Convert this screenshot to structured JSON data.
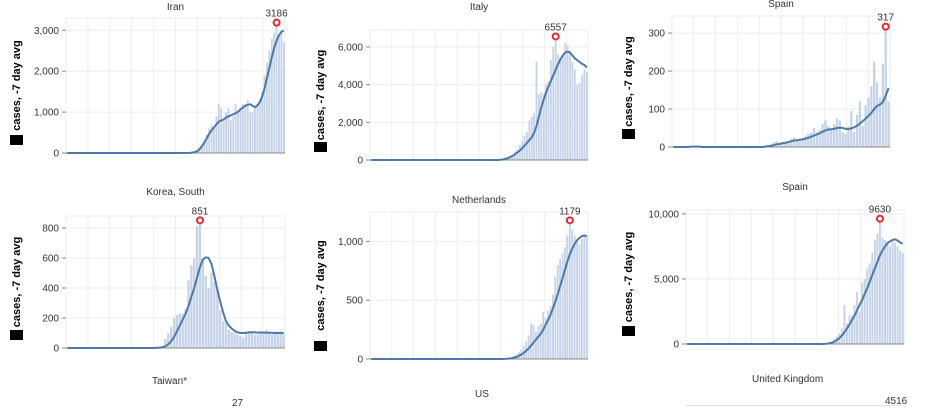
{
  "ylabel": "cases, -7 day avg",
  "colors": {
    "bar": "#c4d3e8",
    "line": "#4e79a7",
    "peak": "#e8262b",
    "grid": "#eeeeee",
    "axis": "#888888"
  },
  "titles_row": {
    "row1": [
      "Iran",
      "Italy",
      "Spain"
    ],
    "row2": [
      "Korea, South",
      "Netherlands",
      "Spain"
    ],
    "row3": [
      "Taiwan*",
      "US",
      "United Kingdom"
    ]
  },
  "bottom_values": {
    "taiwan_peak": "27",
    "uk_peak": "4516"
  },
  "chart_data": [
    {
      "type": "bar",
      "name": "Iran",
      "title": "Iran",
      "ylim": [
        0,
        3300
      ],
      "yticks": [
        0,
        1000,
        2000,
        3000
      ],
      "ytick_labels": [
        "0",
        "1,000",
        "2,000",
        "3,000"
      ],
      "peak": 3186,
      "peak_label": "3186",
      "values": [
        0,
        0,
        0,
        0,
        0,
        0,
        0,
        0,
        0,
        0,
        0,
        0,
        0,
        0,
        0,
        0,
        0,
        0,
        0,
        0,
        0,
        0,
        0,
        0,
        0,
        0,
        0,
        0,
        0,
        0,
        0,
        0,
        0,
        0,
        0,
        0,
        0,
        0,
        0,
        0,
        0,
        0,
        0,
        0,
        0,
        0,
        0,
        0,
        0,
        0,
        0,
        5,
        10,
        25,
        50,
        100,
        200,
        300,
        450,
        600,
        700,
        600,
        900,
        1200,
        1100,
        800,
        1000,
        1100,
        800,
        900,
        1200,
        1050,
        1100,
        1200,
        1150,
        1300,
        1000,
        1000,
        1100,
        1200,
        1300,
        1500,
        1900,
        2200,
        2500,
        2800,
        2950,
        3186,
        2900,
        3000,
        2700
      ],
      "avg": [
        0,
        0,
        0,
        0,
        0,
        0,
        0,
        0,
        0,
        0,
        0,
        0,
        0,
        0,
        0,
        0,
        0,
        0,
        0,
        0,
        0,
        0,
        0,
        0,
        0,
        0,
        0,
        0,
        0,
        0,
        0,
        0,
        0,
        0,
        0,
        0,
        0,
        0,
        0,
        0,
        0,
        0,
        0,
        0,
        0,
        0,
        0,
        0,
        0,
        0,
        0,
        3,
        8,
        15,
        30,
        60,
        120,
        200,
        300,
        400,
        500,
        580,
        650,
        720,
        780,
        800,
        830,
        880,
        900,
        930,
        950,
        980,
        1020,
        1080,
        1120,
        1160,
        1180,
        1190,
        1150,
        1120,
        1170,
        1250,
        1400,
        1600,
        1850,
        2100,
        2350,
        2580,
        2750,
        2880,
        2960,
        3000
      ]
    },
    {
      "type": "bar",
      "name": "Italy",
      "title": "Italy",
      "ylim": [
        0,
        6900
      ],
      "yticks": [
        0,
        2000,
        4000,
        6000
      ],
      "ytick_labels": [
        "0",
        "2,000",
        "4,000",
        "6,000"
      ],
      "peak": 6557,
      "peak_label": "6557",
      "values": [
        0,
        0,
        0,
        0,
        0,
        0,
        0,
        0,
        0,
        0,
        0,
        0,
        0,
        0,
        0,
        0,
        0,
        0,
        0,
        0,
        0,
        0,
        0,
        0,
        0,
        0,
        0,
        0,
        0,
        0,
        0,
        0,
        0,
        0,
        0,
        0,
        0,
        0,
        0,
        0,
        0,
        0,
        0,
        0,
        0,
        0,
        0,
        0,
        0,
        0,
        0,
        0,
        0,
        0,
        20,
        60,
        80,
        150,
        250,
        300,
        450,
        550,
        800,
        1000,
        1300,
        1500,
        2100,
        2300,
        2500,
        5200,
        3500,
        3600,
        3500,
        4000,
        4200,
        5300,
        6000,
        6557,
        5600,
        5400,
        5600,
        6200,
        6100,
        5800,
        5200,
        4800,
        4000,
        4100,
        4500,
        4800,
        4700
      ],
      "avg": [
        0,
        0,
        0,
        0,
        0,
        0,
        0,
        0,
        0,
        0,
        0,
        0,
        0,
        0,
        0,
        0,
        0,
        0,
        0,
        0,
        0,
        0,
        0,
        0,
        0,
        0,
        0,
        0,
        0,
        0,
        0,
        0,
        0,
        0,
        0,
        0,
        0,
        0,
        0,
        0,
        0,
        0,
        0,
        0,
        0,
        0,
        0,
        0,
        0,
        0,
        0,
        0,
        0,
        0,
        10,
        30,
        60,
        100,
        150,
        220,
        300,
        400,
        500,
        620,
        760,
        900,
        1050,
        1200,
        1450,
        1800,
        2300,
        2800,
        3200,
        3600,
        3900,
        4200,
        4500,
        4800,
        5100,
        5350,
        5550,
        5700,
        5750,
        5700,
        5550,
        5400,
        5300,
        5200,
        5100,
        5050,
        4900
      ]
    },
    {
      "type": "bar",
      "name": "Spain",
      "title": "Spain",
      "ylim": [
        0,
        345
      ],
      "yticks": [
        0,
        100,
        200,
        300
      ],
      "ytick_labels": [
        "0",
        "100",
        "200",
        "300"
      ],
      "peak": 317,
      "peak_label": "317",
      "values": [
        0,
        0,
        0,
        0,
        0,
        0,
        2,
        0,
        0,
        0,
        0,
        0,
        0,
        0,
        0,
        0,
        0,
        0,
        0,
        0,
        0,
        0,
        0,
        0,
        0,
        0,
        0,
        0,
        0,
        0,
        0,
        0,
        2,
        5,
        8,
        12,
        15,
        6,
        10,
        12,
        15,
        20,
        25,
        20,
        18,
        22,
        30,
        35,
        38,
        50,
        40,
        45,
        60,
        70,
        55,
        45,
        60,
        75,
        70,
        40,
        35,
        55,
        95,
        40,
        85,
        120,
        55,
        110,
        130,
        160,
        225,
        170,
        130,
        220,
        317,
        120
      ],
      "avg": [
        0,
        0,
        0,
        0,
        0,
        0,
        1,
        1,
        1,
        1,
        0,
        0,
        0,
        0,
        0,
        0,
        0,
        0,
        0,
        0,
        0,
        0,
        0,
        0,
        0,
        0,
        0,
        0,
        0,
        0,
        0,
        0,
        1,
        2,
        3,
        5,
        7,
        8,
        10,
        11,
        13,
        15,
        17,
        18,
        19,
        20,
        22,
        24,
        27,
        30,
        33,
        36,
        40,
        44,
        46,
        47,
        48,
        50,
        51,
        50,
        48,
        47,
        49,
        52,
        56,
        62,
        68,
        75,
        82,
        90,
        100,
        108,
        112,
        118,
        135,
        155
      ]
    },
    {
      "type": "bar",
      "name": "Korea, South",
      "title": "Korea, South",
      "ylim": [
        0,
        880
      ],
      "yticks": [
        0,
        200,
        400,
        600,
        800
      ],
      "ytick_labels": [
        "0",
        "200",
        "400",
        "600",
        "800"
      ],
      "peak": 851,
      "peak_label": "851",
      "values": [
        0,
        0,
        0,
        0,
        0,
        0,
        0,
        0,
        0,
        0,
        0,
        0,
        0,
        0,
        0,
        0,
        0,
        0,
        0,
        0,
        0,
        0,
        0,
        0,
        0,
        0,
        0,
        0,
        0,
        0,
        0,
        2,
        5,
        15,
        60,
        100,
        140,
        200,
        220,
        230,
        230,
        260,
        450,
        550,
        600,
        813,
        851,
        600,
        480,
        400,
        500,
        440,
        380,
        250,
        180,
        170,
        120,
        110,
        100,
        90,
        80,
        70,
        100,
        110,
        110,
        90,
        90,
        110,
        100,
        120,
        110,
        90,
        110,
        100,
        105,
        100
      ],
      "avg": [
        0,
        0,
        0,
        0,
        0,
        0,
        0,
        0,
        0,
        0,
        0,
        0,
        0,
        0,
        0,
        0,
        0,
        0,
        0,
        0,
        0,
        0,
        0,
        0,
        0,
        0,
        0,
        0,
        0,
        0,
        0,
        1,
        2,
        5,
        12,
        25,
        45,
        75,
        110,
        150,
        190,
        230,
        280,
        340,
        400,
        470,
        540,
        590,
        605,
        600,
        560,
        480,
        390,
        310,
        240,
        180,
        150,
        130,
        115,
        105,
        100,
        100,
        102,
        105,
        105,
        104,
        103,
        104,
        103,
        103,
        102,
        101,
        100,
        100,
        101,
        100
      ]
    },
    {
      "type": "bar",
      "name": "Netherlands",
      "title": "Netherlands",
      "ylim": [
        0,
        1250
      ],
      "yticks": [
        0,
        500,
        1000
      ],
      "ytick_labels": [
        "0",
        "500",
        "1,000"
      ],
      "peak": 1179,
      "peak_label": "1179",
      "values": [
        0,
        0,
        0,
        0,
        0,
        0,
        0,
        0,
        0,
        0,
        0,
        0,
        0,
        0,
        0,
        0,
        0,
        0,
        0,
        0,
        0,
        0,
        0,
        0,
        0,
        0,
        0,
        0,
        0,
        0,
        0,
        0,
        0,
        0,
        0,
        0,
        0,
        0,
        0,
        0,
        0,
        0,
        0,
        0,
        0,
        0,
        0,
        0,
        0,
        0,
        0,
        0,
        0,
        0,
        0,
        2,
        5,
        8,
        15,
        25,
        40,
        60,
        80,
        110,
        150,
        200,
        300,
        290,
        230,
        280,
        300,
        400,
        350,
        410,
        450,
        550,
        700,
        800,
        850,
        900,
        950,
        1050,
        1179,
        1100,
        1050,
        1000,
        980,
        1020,
        1040,
        1050
      ],
      "avg": [
        0,
        0,
        0,
        0,
        0,
        0,
        0,
        0,
        0,
        0,
        0,
        0,
        0,
        0,
        0,
        0,
        0,
        0,
        0,
        0,
        0,
        0,
        0,
        0,
        0,
        0,
        0,
        0,
        0,
        0,
        0,
        0,
        0,
        0,
        0,
        0,
        0,
        0,
        0,
        0,
        0,
        0,
        0,
        0,
        0,
        0,
        0,
        0,
        0,
        0,
        0,
        0,
        0,
        0,
        0,
        1,
        2,
        4,
        7,
        12,
        18,
        27,
        38,
        52,
        70,
        90,
        115,
        140,
        165,
        190,
        215,
        250,
        290,
        330,
        375,
        430,
        490,
        550,
        620,
        690,
        760,
        830,
        890,
        940,
        980,
        1010,
        1030,
        1045,
        1050,
        1045
      ]
    },
    {
      "type": "bar",
      "name": "Spain",
      "title": "Spain",
      "ylim": [
        0,
        10300
      ],
      "yticks": [
        0,
        5000,
        10000
      ],
      "ytick_labels": [
        "0",
        "5,000",
        "10,000"
      ],
      "peak": 9630,
      "peak_label": "9630",
      "values": [
        0,
        0,
        0,
        0,
        0,
        0,
        0,
        0,
        0,
        0,
        0,
        0,
        0,
        0,
        0,
        0,
        0,
        0,
        0,
        0,
        0,
        0,
        0,
        0,
        0,
        0,
        0,
        0,
        0,
        0,
        0,
        0,
        0,
        0,
        0,
        0,
        0,
        0,
        0,
        0,
        0,
        0,
        0,
        0,
        0,
        0,
        0,
        0,
        0,
        0,
        0,
        0,
        0,
        0,
        10,
        50,
        100,
        200,
        400,
        600,
        800,
        1200,
        3000,
        1600,
        2200,
        2200,
        3000,
        4000,
        2500,
        4700,
        5000,
        5800,
        6200,
        7000,
        8000,
        8500,
        9630,
        8200,
        8000,
        7900,
        7500,
        8000,
        7800,
        7500,
        7200,
        7000
      ],
      "avg": [
        0,
        0,
        0,
        0,
        0,
        0,
        0,
        0,
        0,
        0,
        0,
        0,
        0,
        0,
        0,
        0,
        0,
        0,
        0,
        0,
        0,
        0,
        0,
        0,
        0,
        0,
        0,
        0,
        0,
        0,
        0,
        0,
        0,
        0,
        0,
        0,
        0,
        0,
        0,
        0,
        0,
        0,
        0,
        0,
        0,
        0,
        0,
        0,
        0,
        0,
        0,
        0,
        0,
        0,
        5,
        20,
        50,
        100,
        180,
        300,
        450,
        650,
        900,
        1200,
        1500,
        1850,
        2200,
        2600,
        3000,
        3400,
        3850,
        4300,
        4800,
        5300,
        5800,
        6300,
        6800,
        7200,
        7500,
        7750,
        7900,
        8000,
        8050,
        7950,
        7800,
        7700
      ]
    }
  ]
}
